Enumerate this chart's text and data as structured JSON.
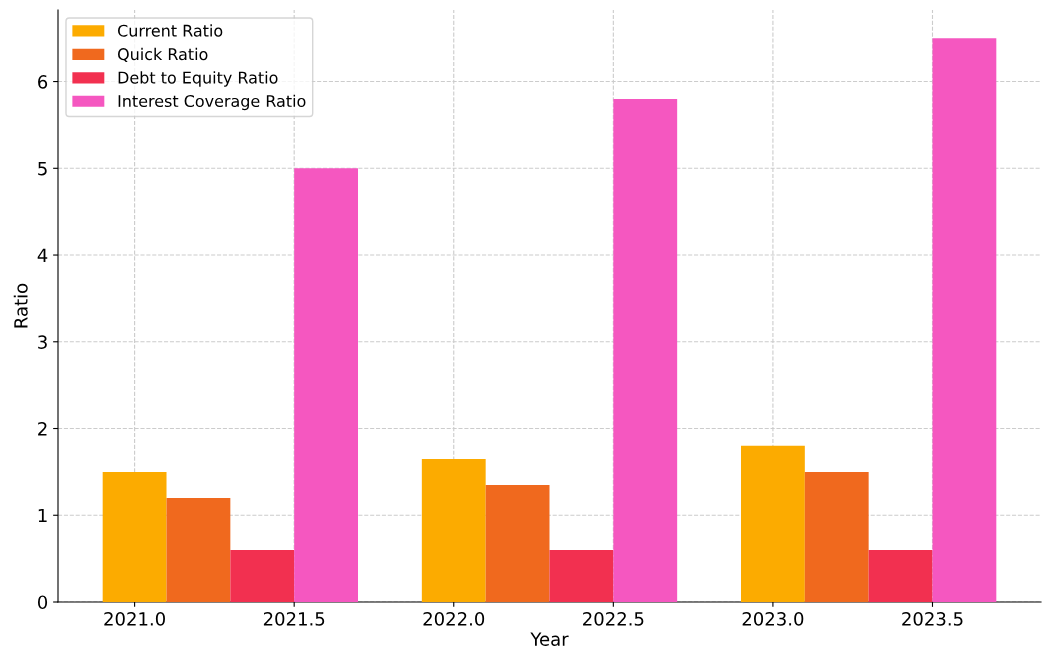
{
  "chart_data": {
    "type": "bar",
    "xlabel": "Year",
    "ylabel": "Ratio",
    "series": [
      {
        "name": "Current Ratio",
        "color": "#fcab00",
        "x": [
          2021.0,
          2022.0,
          2023.0
        ],
        "values": [
          1.5,
          1.65,
          1.8
        ]
      },
      {
        "name": "Quick Ratio",
        "color": "#f0691e",
        "x": [
          2021.2,
          2022.2,
          2023.2
        ],
        "values": [
          1.2,
          1.35,
          1.5
        ]
      },
      {
        "name": "Debt to Equity Ratio",
        "color": "#f23050",
        "x": [
          2021.4,
          2022.4,
          2023.4
        ],
        "values": [
          0.6,
          0.6,
          0.6
        ]
      },
      {
        "name": "Interest Coverage Ratio",
        "color": "#f557c0",
        "x": [
          2021.6,
          2022.6,
          2023.6
        ],
        "values": [
          5.0,
          5.8,
          6.5
        ]
      }
    ],
    "xlim": [
      2020.76,
      2023.84
    ],
    "xticks": [
      {
        "value": 2021.0,
        "label": "2021.0"
      },
      {
        "value": 2021.5,
        "label": "2021.5"
      },
      {
        "value": 2022.0,
        "label": "2022.0"
      },
      {
        "value": 2022.5,
        "label": "2022.5"
      },
      {
        "value": 2023.0,
        "label": "2023.0"
      },
      {
        "value": 2023.5,
        "label": "2023.5"
      }
    ],
    "ylim": [
      0,
      6.825
    ],
    "yticks": [
      0,
      1,
      2,
      3,
      4,
      5,
      6
    ],
    "grid": true,
    "legend": "top left"
  }
}
